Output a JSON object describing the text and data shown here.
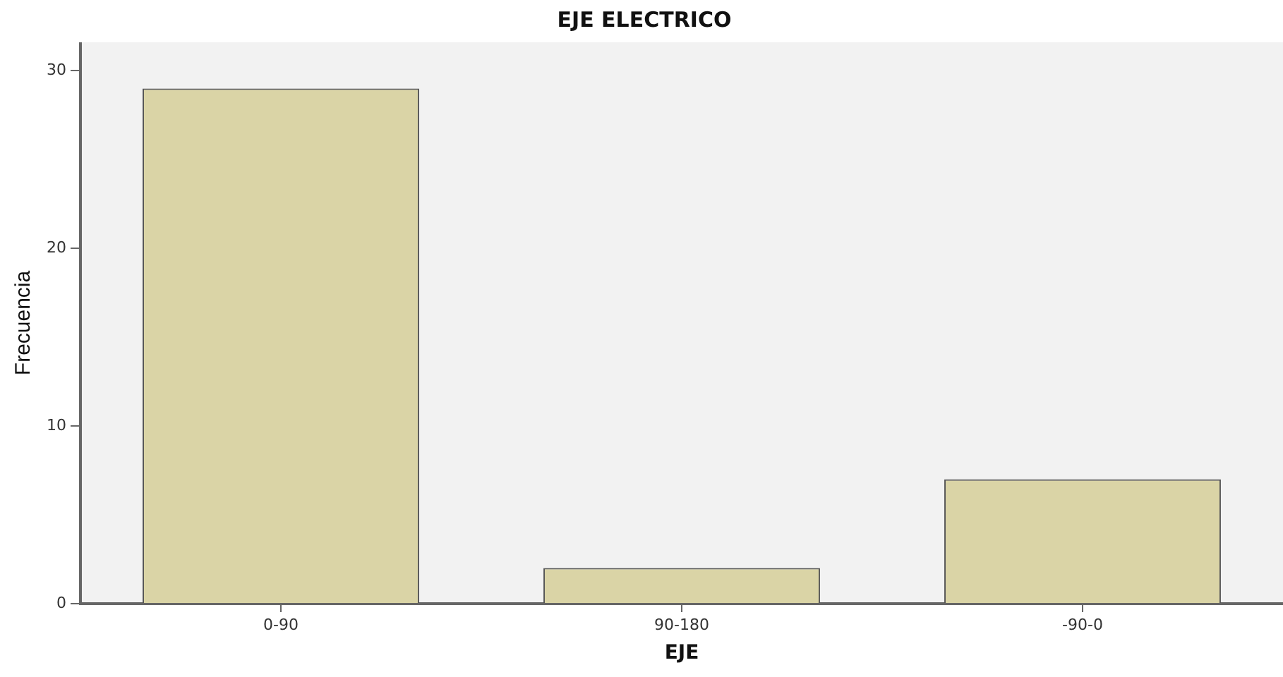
{
  "chart_data": {
    "type": "bar",
    "title": "EJE ELECTRICO",
    "xlabel": "EJE",
    "ylabel": "Frecuencia",
    "categories": [
      "0-90",
      "90-180",
      "-90-0"
    ],
    "values": [
      29,
      2,
      7
    ],
    "color": "#dad4a6",
    "ylim": [
      0,
      31.6
    ],
    "yticks": [
      0,
      10,
      20,
      30
    ],
    "grid": false,
    "legend": false
  }
}
